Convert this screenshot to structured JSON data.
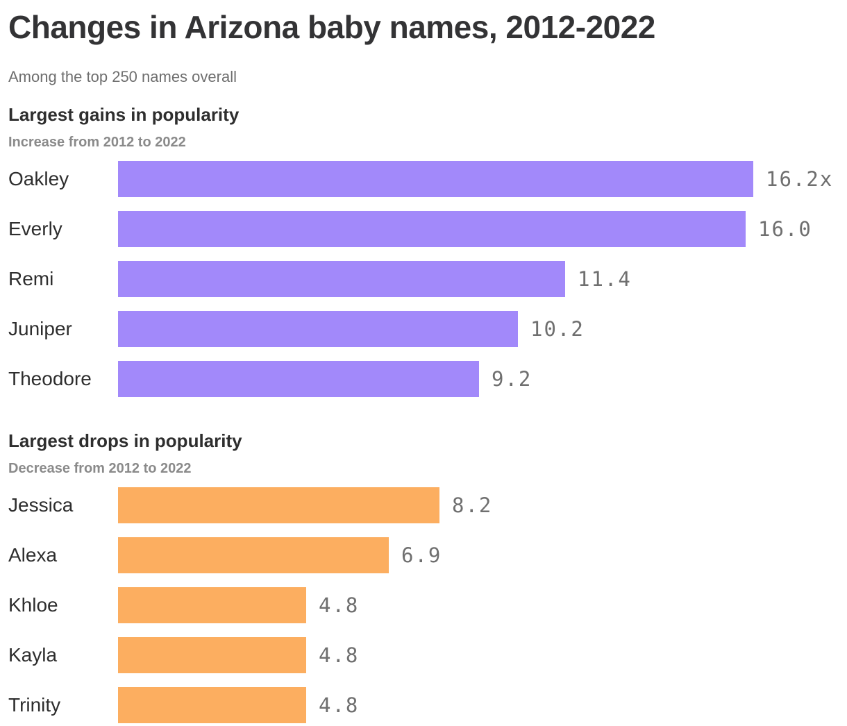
{
  "page": {
    "title": "Changes in Arizona baby names, 2012-2022",
    "subtitle": "Among the top 250 names overall"
  },
  "colors": {
    "gain_bar": "#a289fa",
    "drop_bar": "#fcae60",
    "heading_text": "#2e2e2e",
    "value_text": "#6f6f6f",
    "muted_text": "#8a8a8a"
  },
  "chart_data": [
    {
      "type": "bar",
      "orientation": "horizontal",
      "title": "Largest gains in popularity",
      "subtitle": "Increase from 2012 to 2022",
      "categories": [
        "Oakley",
        "Everly",
        "Remi",
        "Juniper",
        "Theodore"
      ],
      "values": [
        16.2,
        16.0,
        11.4,
        10.2,
        9.2
      ],
      "value_labels": [
        "16.2x",
        "16.0",
        "11.4",
        "10.2",
        "9.2"
      ],
      "bar_color": "#a289fa",
      "xlim": [
        0,
        16.2
      ],
      "grid": false,
      "legend": "none"
    },
    {
      "type": "bar",
      "orientation": "horizontal",
      "title": "Largest drops in popularity",
      "subtitle": "Decrease from 2012 to 2022",
      "categories": [
        "Jessica",
        "Alexa",
        "Khloe",
        "Kayla",
        "Trinity"
      ],
      "values": [
        8.2,
        6.9,
        4.8,
        4.8,
        4.8
      ],
      "value_labels": [
        "8.2",
        "6.9",
        "4.8",
        "4.8",
        "4.8"
      ],
      "bar_color": "#fcae60",
      "xlim": [
        0,
        16.2
      ],
      "grid": false,
      "legend": "none"
    }
  ]
}
